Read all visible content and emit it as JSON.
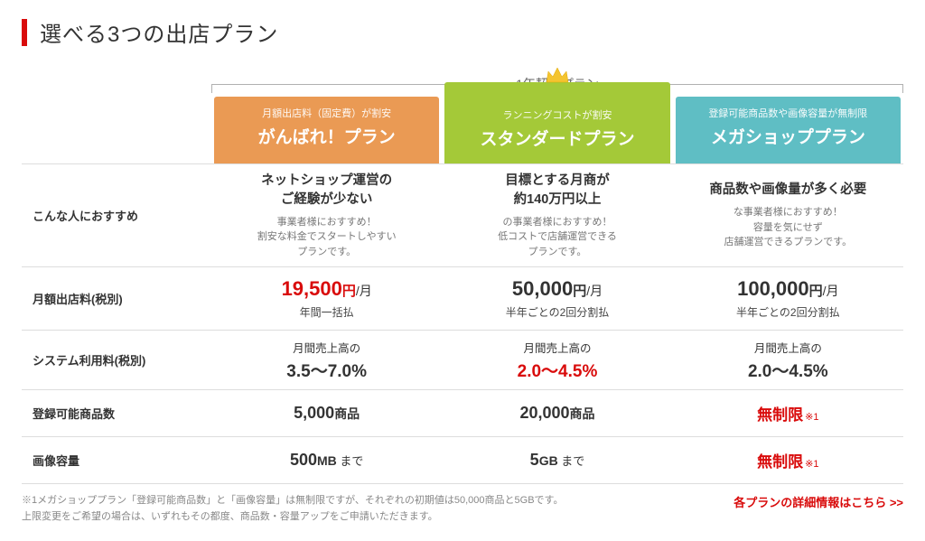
{
  "title": "選べる3つの出店プラン",
  "group_label": "1年契約プラン",
  "row_labels": {
    "recommend": "こんな人におすすめ",
    "monthly_fee": "月額出店料(税別)",
    "system_fee": "システム利用料(税別)",
    "product_count": "登録可能商品数",
    "image_capacity": "画像容量"
  },
  "plans": [
    {
      "header_color": "#ea9a54",
      "sub": "月額出店料（固定費）が割安",
      "name": "がんばれ！プラン",
      "recommend_main": "ネットショップ運営の\nご経験が少ない",
      "recommend_sub": "事業者様におすすめ！\n割安な料金でスタートしやすい\nプランです。",
      "price_num": "19,500",
      "price_unit": "円",
      "price_per": "/月",
      "price_red": true,
      "price_sub": "年間一括払",
      "system_top": "月間売上高の",
      "system_val": "3.5〜7.0%",
      "system_red": false,
      "products": "5,000",
      "products_unit": "商品",
      "products_unlimited": false,
      "image": "500",
      "image_unit": "MB",
      "image_tail": " まで",
      "image_unlimited": false
    },
    {
      "header_color": "#a4c938",
      "crown": true,
      "sub": "ランニングコストが割安",
      "name": "スタンダードプラン",
      "recommend_main": "目標とする月商が\n約140万円以上",
      "recommend_sub": "の事業者様におすすめ！\n低コストで店舗運営できる\nプランです。",
      "price_num": "50,000",
      "price_unit": "円",
      "price_per": "/月",
      "price_red": false,
      "price_sub": "半年ごとの2回分割払",
      "system_top": "月間売上高の",
      "system_val": "2.0〜4.5%",
      "system_red": true,
      "products": "20,000",
      "products_unit": "商品",
      "products_unlimited": false,
      "image": "5",
      "image_unit": "GB",
      "image_tail": " まで",
      "image_unlimited": false
    },
    {
      "header_color": "#5fbec4",
      "sub": "登録可能商品数や画像容量が無制限",
      "name": "メガショッププラン",
      "recommend_main": "商品数や画像量が多く必要",
      "recommend_sub": "な事業者様におすすめ！\n容量を気にせず\n店舗運営できるプランです。",
      "price_num": "100,000",
      "price_unit": "円",
      "price_per": "/月",
      "price_red": false,
      "price_sub": "半年ごとの2回分割払",
      "system_top": "月間売上高の",
      "system_val": "2.0〜4.5%",
      "system_red": false,
      "products_unlimited": true,
      "unlimited_label": "無制限",
      "unlimited_note": "※1",
      "image_unlimited": true
    }
  ],
  "footnotes": [
    "※1メガショッププラン「登録可能商品数」と「画像容量」は無制限ですが、それぞれの初期値は50,000商品と5GBです。",
    "上限変更をご希望の場合は、いずれもその都度、商品数・容量アップをご申請いただきます。"
  ],
  "details_link": "各プランの詳細情報はこちら >>"
}
